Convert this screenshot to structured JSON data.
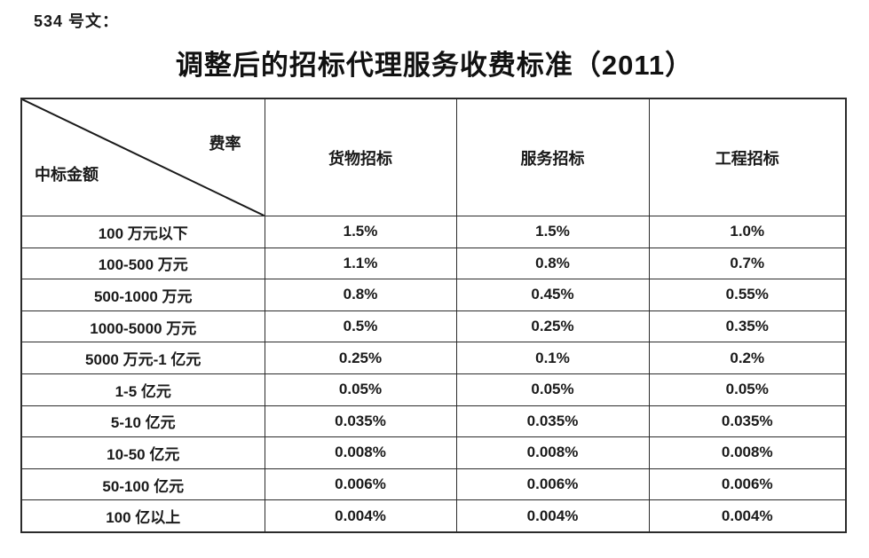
{
  "doc_label": "534 号文：",
  "title": "调整后的招标代理服务收费标准（2011）",
  "table": {
    "corner": {
      "top_right": "费率",
      "bottom_left": "中标金额"
    },
    "columns": [
      "货物招标",
      "服务招标",
      "工程招标"
    ],
    "rows": [
      {
        "range": "100 万元以下",
        "values": [
          "1.5%",
          "1.5%",
          "1.0%"
        ]
      },
      {
        "range": "100-500 万元",
        "values": [
          "1.1%",
          "0.8%",
          "0.7%"
        ]
      },
      {
        "range": "500-1000 万元",
        "values": [
          "0.8%",
          "0.45%",
          "0.55%"
        ]
      },
      {
        "range": "1000-5000 万元",
        "values": [
          "0.5%",
          "0.25%",
          "0.35%"
        ]
      },
      {
        "range": "5000 万元-1 亿元",
        "values": [
          "0.25%",
          "0.1%",
          "0.2%"
        ]
      },
      {
        "range": "1-5 亿元",
        "values": [
          "0.05%",
          "0.05%",
          "0.05%"
        ]
      },
      {
        "range": "5-10 亿元",
        "values": [
          "0.035%",
          "0.035%",
          "0.035%"
        ]
      },
      {
        "range": "10-50 亿元",
        "values": [
          "0.008%",
          "0.008%",
          "0.008%"
        ]
      },
      {
        "range": "50-100 亿元",
        "values": [
          "0.006%",
          "0.006%",
          "0.006%"
        ]
      },
      {
        "range": "100 亿以上",
        "values": [
          "0.004%",
          "0.004%",
          "0.004%"
        ]
      }
    ]
  },
  "colors": {
    "text": "#1a1a1a",
    "border": "#2b2b2b",
    "background": "#ffffff",
    "diagonal": "#1a1a1a"
  }
}
